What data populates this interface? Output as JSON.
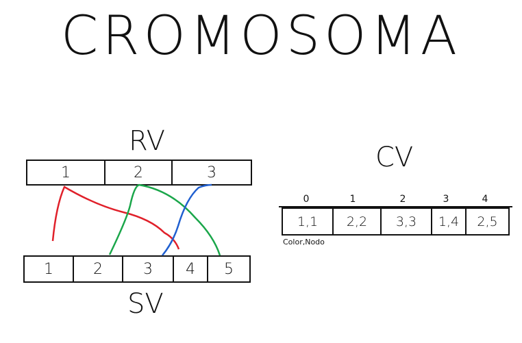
{
  "title": "CROMOSOMA",
  "rv": {
    "label": "RV",
    "cells": [
      "1",
      "2",
      "3"
    ]
  },
  "sv": {
    "label": "SV",
    "cells": [
      "1",
      "2",
      "3",
      "4",
      "5"
    ]
  },
  "cv": {
    "label": "CV",
    "indices": [
      "0",
      "1",
      "2",
      "3",
      "4"
    ],
    "cells": [
      "1,1",
      "2,2",
      "3,3",
      "1,4",
      "2,5"
    ],
    "caption": "Color,Nodo"
  },
  "colors": {
    "red": "#e0202a",
    "green": "#1aa64a",
    "blue": "#1f5fd0",
    "ink": "#111111"
  }
}
